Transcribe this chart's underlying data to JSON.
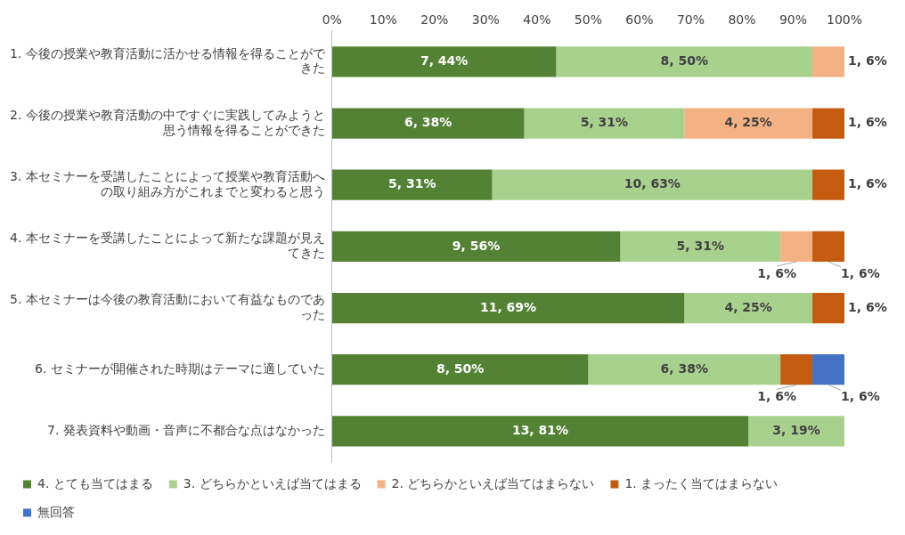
{
  "chart_data": {
    "type": "bar",
    "orientation": "horizontal",
    "stacked": true,
    "categories": [
      "1. 今後の授業や教育活動に活かせる情報を得ることができた",
      "2. 今後の授業や教育活動の中ですぐに実践してみようと思う情報を得ることができた",
      "3. 本セミナーを受講したことによって授業や教育活動への取り組み方がこれまでと変わると思う",
      "4. 本セミナーを受講したことによって新たな課題が見えてきた",
      "5. 本セミナーは今後の教育活動において有益なものであった",
      "6. セミナーが開催された時期はテーマに適していた",
      "7. 発表資料や動画・音声に不都合な点はなかった"
    ],
    "series": [
      {
        "name": "4. とても当てはまる",
        "color": "#548235",
        "values": [
          43.75,
          37.5,
          31.25,
          56.25,
          68.75,
          50,
          81.25
        ],
        "value_labels": [
          "7, 44%",
          "6, 38%",
          "5, 31%",
          "9, 56%",
          "11, 69%",
          "8, 50%",
          "13, 81%"
        ]
      },
      {
        "name": "3. どちらかといえば当てはまる",
        "color": "#a9d18e",
        "values": [
          50,
          31.25,
          62.5,
          31.25,
          25,
          37.5,
          18.75
        ],
        "value_labels": [
          "8, 50%",
          "5, 31%",
          "10, 63%",
          "5, 31%",
          "4, 25%",
          "6, 38%",
          "3, 19%"
        ]
      },
      {
        "name": "2. どちらかといえば当てはまらない",
        "color": "#f4b183",
        "values": [
          6.25,
          25,
          null,
          6.25,
          null,
          null,
          null
        ],
        "value_labels": [
          "1, 6%",
          "4, 25%",
          null,
          "1, 6%",
          null,
          null,
          null
        ]
      },
      {
        "name": "1. まったく当てはまらない",
        "color": "#c55a11",
        "values": [
          null,
          6.25,
          6.25,
          6.25,
          6.25,
          6.25,
          null
        ],
        "value_labels": [
          null,
          "1, 6%",
          "1, 6%",
          "1, 6%",
          "1, 6%",
          "1, 6%",
          null
        ]
      },
      {
        "name": "無回答",
        "color": "#4472c4",
        "values": [
          null,
          null,
          null,
          null,
          null,
          6.25,
          null
        ],
        "value_labels": [
          null,
          null,
          null,
          null,
          null,
          "1, 6%",
          null
        ]
      }
    ],
    "xlim": [
      0,
      100
    ],
    "xticks": [
      {
        "value": 0,
        "label": "0%"
      },
      {
        "value": 10,
        "label": "10%"
      },
      {
        "value": 20,
        "label": "20%"
      },
      {
        "value": 30,
        "label": "30%"
      },
      {
        "value": 40,
        "label": "40%"
      },
      {
        "value": 50,
        "label": "50%"
      },
      {
        "value": 60,
        "label": "60%"
      },
      {
        "value": 70,
        "label": "70%"
      },
      {
        "value": 80,
        "label": "80%"
      },
      {
        "value": 90,
        "label": "90%"
      },
      {
        "value": 100,
        "label": "100%"
      }
    ],
    "grid": false,
    "legend": "bottom"
  }
}
